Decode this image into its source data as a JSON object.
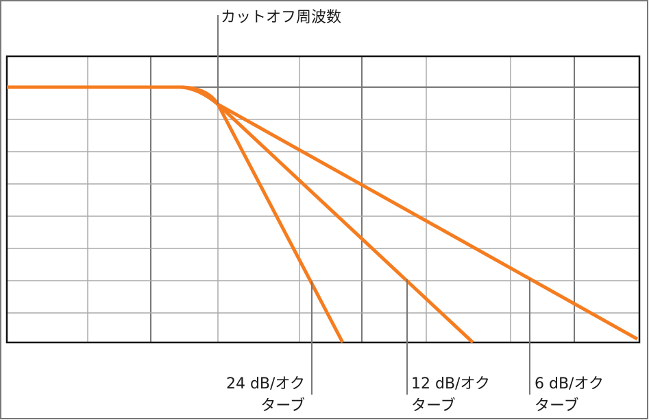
{
  "cutoff_label": "カットオフ周波数",
  "slopes": [
    [
      "24 dB/オク",
      "ターブ"
    ],
    [
      "12 dB/オク",
      "ターブ"
    ],
    [
      "6 dB/オク",
      "ターブ"
    ]
  ]
}
